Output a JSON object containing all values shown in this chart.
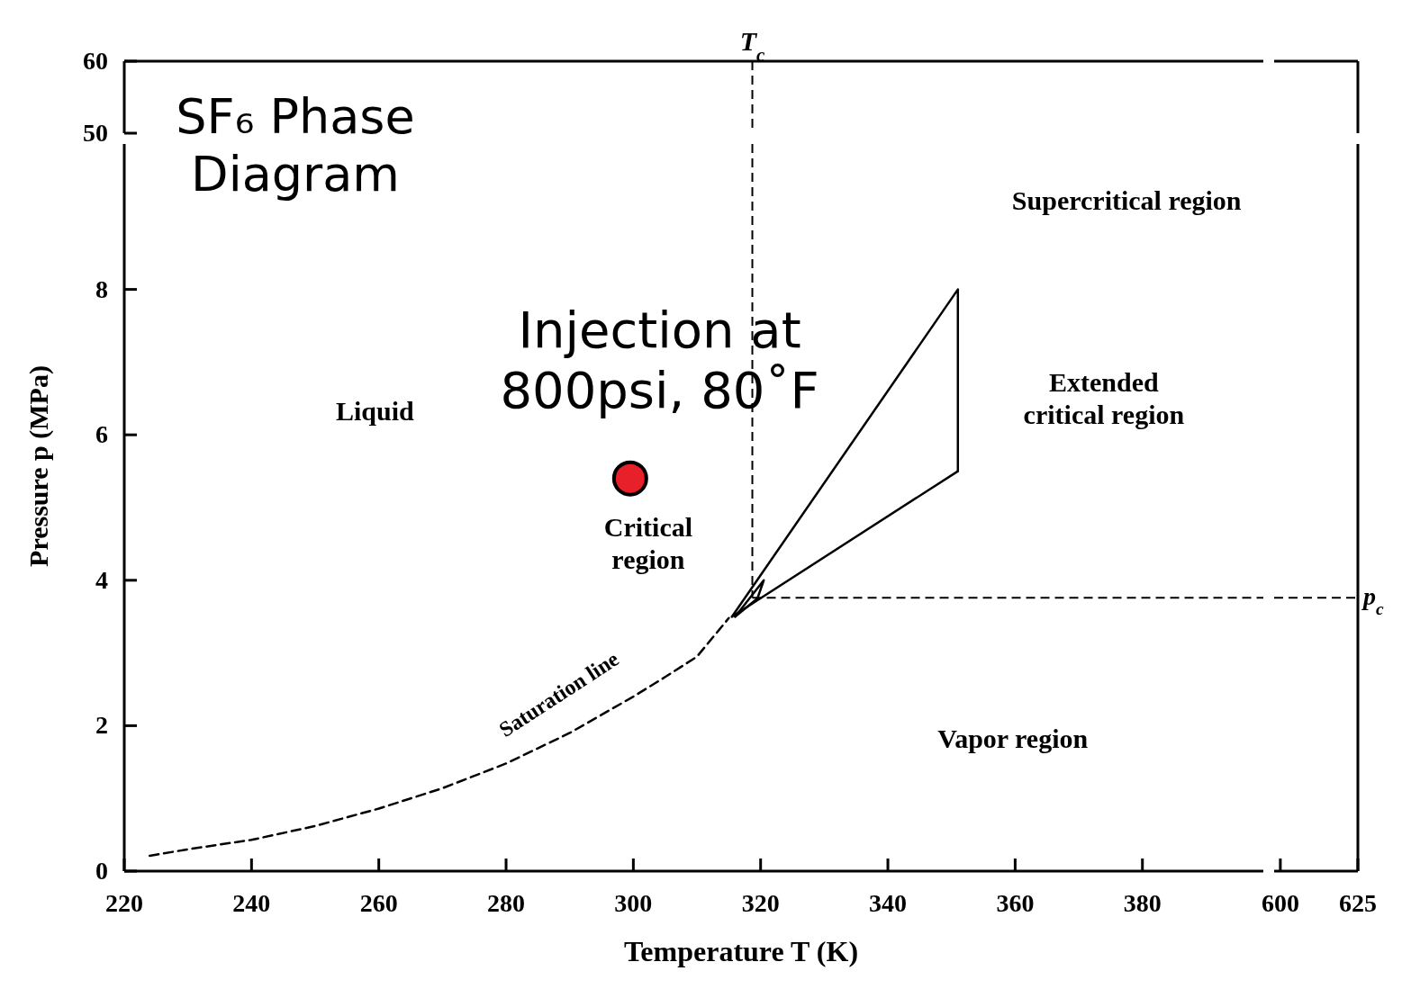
{
  "chart_data": [
    {
      "type": "line",
      "title": "SF₆ Phase Diagram",
      "xlabel": "Temperature  T  (K)",
      "ylabel": "Pressure  p  (MPa)",
      "xlim": [
        220,
        399
      ],
      "xticks": [
        220,
        240,
        260,
        280,
        300,
        320,
        340,
        360,
        380
      ],
      "ylim": [
        0,
        10
      ],
      "yticks": [
        0,
        2,
        4,
        6,
        8
      ],
      "series": [
        {
          "type": "line",
          "color": "#000000",
          "line_style": "dashed",
          "x": [
            224,
            230,
            240,
            250,
            260,
            270,
            280,
            290,
            300,
            305,
            310,
            315
          ],
          "values": [
            0.21,
            0.3,
            0.43,
            0.62,
            0.86,
            1.14,
            1.48,
            1.9,
            2.4,
            2.67,
            2.95,
            3.48
          ]
        },
        {
          "type": "line",
          "color": "#000000",
          "line_style": "solid",
          "x": [
            315.5,
            351,
            351
          ],
          "values": [
            3.5,
            8.0,
            5.5
          ]
        },
        {
          "type": "line",
          "color": "#000000",
          "line_style": "solid",
          "x": [
            315.5,
            351
          ],
          "values": [
            3.5,
            5.5
          ]
        },
        {
          "type": "line",
          "color": "#000000",
          "line_style": "solid",
          "x": [
            316,
            320.5,
            319.5
          ],
          "values": [
            3.5,
            4.0,
            3.75
          ]
        },
        {
          "type": "line",
          "color": "#000000",
          "line_style": "solid",
          "x": [
            316,
            319.5
          ],
          "values": [
            3.5,
            3.75
          ]
        },
        {
          "type": "scatter",
          "color": "#e8202a",
          "marker": "circle",
          "x": [
            299.5
          ],
          "values": [
            5.4
          ]
        }
      ],
      "ref_lines": [
        {
          "axis": "x",
          "value": 318.7,
          "line_style": "dashed"
        },
        {
          "axis": "y",
          "value": 3.76,
          "line_style": "dashed"
        }
      ],
      "annotations": [
        "Injection at 800psi, 80˚F",
        "Supercritical region",
        "Liquid",
        "Extended critical region",
        "Critical region",
        "Saturation line",
        "Vapor region"
      ]
    },
    {
      "type": "line",
      "xlim": [
        220,
        399
      ],
      "ylim": [
        50,
        60
      ],
      "yticks": [
        50,
        60
      ],
      "tick_labels": "y",
      "ref_lines": [
        {
          "axis": "x",
          "value": 318.7,
          "label": "T$_{c}$",
          "line_style": "dashed"
        }
      ]
    },
    {
      "type": "line",
      "xlim": [
        598,
        625
      ],
      "xticks": [
        600,
        625
      ],
      "ylim": [
        0,
        10
      ],
      "tick_labels": "x",
      "ref_lines": [
        {
          "axis": "y",
          "value": 3.76,
          "label": "p$_{c}$",
          "line_style": "dashed"
        }
      ]
    },
    {
      "type": "line",
      "xlim": [
        598,
        625
      ],
      "ylim": [
        50,
        60
      ],
      "tick_labels": false
    }
  ]
}
